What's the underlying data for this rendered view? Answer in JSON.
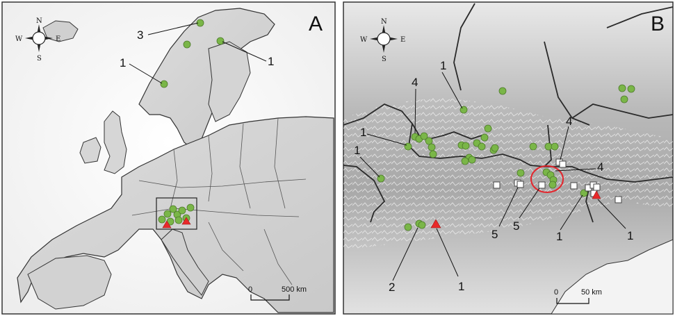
{
  "panels": [
    {
      "letter": "A",
      "compass": {
        "n": "N",
        "s": "S",
        "e": "E",
        "w": "W"
      },
      "scale": {
        "start": "0",
        "end": "500 km"
      },
      "callouts": [
        "3",
        "1",
        "1"
      ]
    },
    {
      "letter": "B",
      "compass": {
        "n": "N",
        "s": "S",
        "e": "E",
        "w": "W"
      },
      "scale": {
        "start": "0",
        "end": "50 km"
      },
      "callouts": [
        "1",
        "4",
        "1",
        "1",
        "4",
        "4",
        "5",
        "5",
        "1",
        "1",
        "2",
        "1"
      ]
    }
  ],
  "legend_symbols": {
    "green_circle": "#7ab648",
    "red_triangle": "#e8292a",
    "white_square": "#ffffff",
    "highlight_ring": "#e3262d"
  }
}
